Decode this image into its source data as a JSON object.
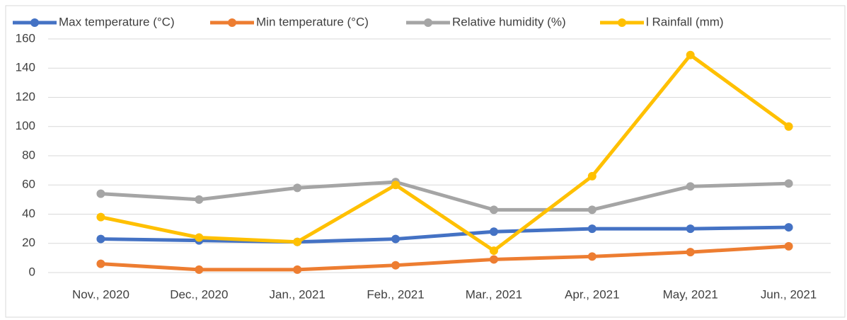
{
  "chart_data": {
    "type": "line",
    "categories": [
      "Nov., 2020",
      "Dec., 2020",
      "Jan., 2021",
      "Feb., 2021",
      "Mar., 2021",
      "Apr., 2021",
      "May, 2021",
      "Jun., 2021"
    ],
    "series": [
      {
        "name": "Max temperature (°C)",
        "color": "#4472c4",
        "values": [
          23,
          22,
          21,
          23,
          28,
          30,
          30,
          31
        ]
      },
      {
        "name": "Min temperature (°C)",
        "color": "#ed7d31",
        "values": [
          6,
          2,
          2,
          5,
          9,
          11,
          14,
          18
        ]
      },
      {
        "name": "Relative humidity (%)",
        "color": "#a5a5a5",
        "values": [
          54,
          50,
          58,
          62,
          43,
          43,
          59,
          61
        ]
      },
      {
        "name": "l Rainfall (mm)",
        "color": "#ffc000",
        "values": [
          38,
          24,
          21,
          60,
          15,
          66,
          149,
          100
        ]
      }
    ],
    "ylim": [
      0,
      160
    ],
    "yticks": [
      0,
      20,
      40,
      60,
      80,
      100,
      120,
      140,
      160
    ],
    "grid": true,
    "legend": "top"
  }
}
